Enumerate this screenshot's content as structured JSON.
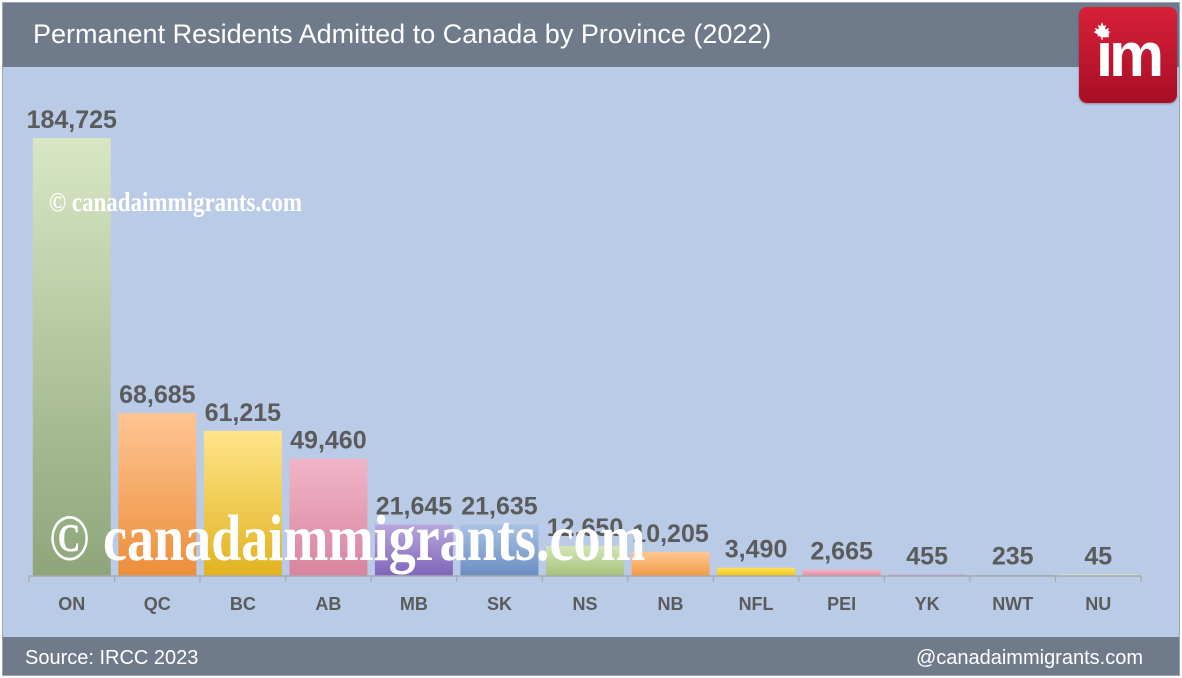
{
  "header": {
    "title": "Permanent Residents Admitted to Canada by Province (2022)"
  },
  "logo": {
    "text": "im",
    "accent": "#c8152f"
  },
  "footer": {
    "source": "Source: IRCC 2023",
    "handle": "@canadaimmigrants.com"
  },
  "watermark": {
    "text": "© canadaimmigrants.com"
  },
  "chart_data": {
    "type": "bar",
    "title": "Permanent Residents Admitted to Canada by Province (2022)",
    "xlabel": "",
    "ylabel": "",
    "ylim": [
      0,
      184725
    ],
    "grid": false,
    "categories": [
      "ON",
      "QC",
      "BC",
      "AB",
      "MB",
      "SK",
      "NS",
      "NB",
      "NFL",
      "PEI",
      "YK",
      "NWT",
      "NU"
    ],
    "values": [
      184725,
      68685,
      61215,
      49460,
      21645,
      21635,
      12650,
      10205,
      3490,
      2665,
      455,
      235,
      45
    ],
    "value_labels": [
      "184,725",
      "68,685",
      "61,215",
      "49,460",
      "21,645",
      "21,635",
      "12,650",
      "10,205",
      "3,490",
      "2,665",
      "455",
      "235",
      "45"
    ],
    "colors": [
      [
        "#d8e6c4",
        "#8ea57a"
      ],
      [
        "#ffc593",
        "#ec8e3a"
      ],
      [
        "#ffe58a",
        "#e2b220"
      ],
      [
        "#f1b5c8",
        "#d8849f"
      ],
      [
        "#b9a6df",
        "#7f65b8"
      ],
      [
        "#a9c1e3",
        "#6a8ec3"
      ],
      [
        "#d5e6b8",
        "#a6c27c"
      ],
      [
        "#ffc895",
        "#f19a44"
      ],
      [
        "#ffe35a",
        "#ecc418"
      ],
      [
        "#f4b3c6",
        "#e38aa3"
      ],
      [
        "#c9b2e6",
        "#9a7ec8"
      ],
      [
        "#b0c8ea",
        "#8aa7d2"
      ],
      [
        "#e1ecc8",
        "#c0d49e"
      ]
    ]
  }
}
